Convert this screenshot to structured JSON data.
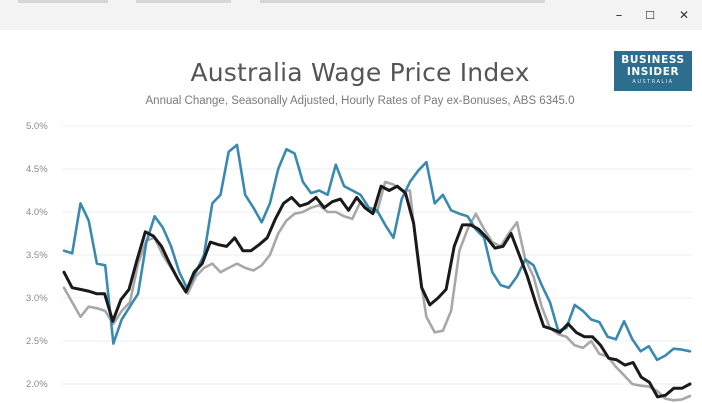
{
  "window": {
    "minimize_glyph": "–",
    "maximize_glyph": "☐",
    "close_glyph": "✕"
  },
  "logo": {
    "line1": "BUSINESS",
    "line2": "INSIDER",
    "line3": "AUSTRALIA",
    "color": "#2d6e8e"
  },
  "chart_data": {
    "type": "line",
    "title": "Australia Wage Price Index",
    "subtitle": "Annual Change, Seasonally Adjusted, Hourly Rates of Pay ex-Bonuses, ABS 6345.0",
    "xlabel": "",
    "ylabel": "",
    "ylim": [
      1.8,
      5.1
    ],
    "yticks": [
      2.0,
      2.5,
      3.0,
      3.5,
      4.0,
      4.5,
      5.0
    ],
    "ytick_labels": [
      "2.0%",
      "2.5%",
      "3.0%",
      "3.5%",
      "4.0%",
      "4.5%",
      "5.0%"
    ],
    "grid": true,
    "legend": "none",
    "series": [
      {
        "color": "#3a8ab0",
        "values": [
          3.55,
          3.52,
          4.1,
          3.9,
          3.4,
          3.38,
          2.47,
          2.75,
          2.9,
          3.05,
          3.65,
          3.95,
          3.82,
          3.6,
          3.3,
          3.1,
          3.3,
          3.5,
          4.1,
          4.2,
          4.7,
          4.78,
          4.2,
          4.05,
          3.88,
          4.1,
          4.5,
          4.73,
          4.68,
          4.35,
          4.22,
          4.25,
          4.2,
          4.55,
          4.3,
          4.25,
          4.2,
          4.05,
          4.02,
          3.85,
          3.7,
          4.15,
          4.35,
          4.48,
          4.58,
          4.1,
          4.2,
          4.02,
          3.98,
          3.95,
          3.8,
          3.7,
          3.3,
          3.15,
          3.12,
          3.25,
          3.45,
          3.38,
          3.15,
          2.95,
          2.62,
          2.65,
          2.92,
          2.85,
          2.75,
          2.72,
          2.55,
          2.52,
          2.73,
          2.52,
          2.38,
          2.44,
          2.28,
          2.33,
          2.41,
          2.4,
          2.38
        ]
      },
      {
        "color": "#1a1a1a",
        "values": [
          3.3,
          3.12,
          3.1,
          3.08,
          3.05,
          3.05,
          2.73,
          2.98,
          3.1,
          3.45,
          3.77,
          3.72,
          3.6,
          3.4,
          3.22,
          3.07,
          3.3,
          3.4,
          3.65,
          3.62,
          3.6,
          3.7,
          3.55,
          3.55,
          3.62,
          3.7,
          3.92,
          4.1,
          4.17,
          4.07,
          4.1,
          4.17,
          4.05,
          4.12,
          4.15,
          4.02,
          4.17,
          4.05,
          3.98,
          4.3,
          4.25,
          4.3,
          4.22,
          3.87,
          3.12,
          2.92,
          3.0,
          3.1,
          3.6,
          3.85,
          3.85,
          3.8,
          3.7,
          3.58,
          3.6,
          3.75,
          3.5,
          3.25,
          2.95,
          2.67,
          2.64,
          2.6,
          2.7,
          2.6,
          2.55,
          2.55,
          2.45,
          2.3,
          2.28,
          2.22,
          2.25,
          2.08,
          2.02,
          1.85,
          1.87,
          1.95,
          1.95,
          2.0
        ]
      },
      {
        "color": "#a8a8a8",
        "values": [
          3.12,
          2.95,
          2.78,
          2.9,
          2.88,
          2.85,
          2.7,
          2.85,
          2.95,
          3.4,
          3.67,
          3.7,
          3.5,
          3.35,
          3.2,
          3.05,
          3.25,
          3.35,
          3.4,
          3.3,
          3.35,
          3.4,
          3.35,
          3.32,
          3.38,
          3.5,
          3.75,
          3.9,
          3.98,
          4.0,
          4.05,
          4.08,
          4.0,
          4.0,
          3.95,
          3.92,
          4.12,
          4.02,
          4.0,
          4.35,
          4.32,
          4.25,
          4.25,
          3.4,
          2.78,
          2.6,
          2.62,
          2.85,
          3.55,
          3.8,
          3.98,
          3.8,
          3.65,
          3.6,
          3.75,
          3.88,
          3.45,
          3.25,
          2.9,
          2.65,
          2.58,
          2.55,
          2.45,
          2.42,
          2.5,
          2.35,
          2.32,
          2.2,
          2.1,
          2.0,
          1.98,
          1.97,
          1.92,
          1.83,
          1.81,
          1.82,
          1.86
        ]
      }
    ]
  }
}
